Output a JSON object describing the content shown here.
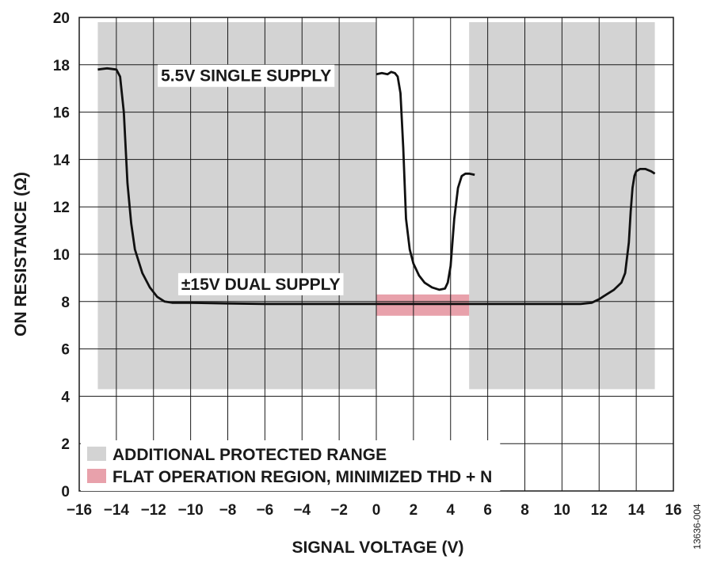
{
  "chart_data": {
    "type": "line",
    "title": "",
    "xlabel": "SIGNAL VOLTAGE (V)",
    "ylabel": "ON RESISTANCE (Ω)",
    "xlim": [
      -16,
      16
    ],
    "ylim": [
      0,
      20
    ],
    "x_ticks": [
      -16,
      -14,
      -12,
      -10,
      -8,
      -6,
      -4,
      -2,
      0,
      2,
      4,
      6,
      8,
      10,
      12,
      14,
      16
    ],
    "x_tick_labels": [
      "−16",
      "−14",
      "−12",
      "−10",
      "−8",
      "−6",
      "−4",
      "−2",
      "0",
      "2",
      "4",
      "6",
      "8",
      "10",
      "12",
      "14",
      "16"
    ],
    "y_ticks": [
      0,
      2,
      4,
      6,
      8,
      10,
      12,
      14,
      16,
      18,
      20
    ],
    "y_tick_labels": [
      "0",
      "2",
      "4",
      "6",
      "8",
      "10",
      "12",
      "14",
      "16",
      "18",
      "20"
    ],
    "grid": true,
    "shaded_regions": [
      {
        "legend_ref": 0,
        "x": [
          -15,
          0
        ],
        "y": [
          4.3,
          19.8
        ],
        "color": "#d3d3d3"
      },
      {
        "legend_ref": 0,
        "x": [
          5,
          15
        ],
        "y": [
          4.3,
          19.8
        ],
        "color": "#d3d3d3"
      },
      {
        "legend_ref": 1,
        "x": [
          0,
          5
        ],
        "y": [
          7.4,
          8.3
        ],
        "color": "#e8a1ab"
      }
    ],
    "legend": {
      "placement": "bottom-left",
      "entries": [
        {
          "label": "ADDITIONAL PROTECTED RANGE",
          "color": "#d3d3d3"
        },
        {
          "label": "FLAT OPERATION REGION, MINIMIZED THD + N",
          "color": "#e8a1ab"
        }
      ]
    },
    "series": [
      {
        "name": "±15V DUAL SUPPLY",
        "label_at": [
          -10.5,
          8.5
        ],
        "x": [
          -15,
          -14.5,
          -14,
          -13.8,
          -13.6,
          -13.4,
          -13.2,
          -13,
          -12.6,
          -12.2,
          -11.8,
          -11.4,
          -11,
          -10,
          -8,
          -6,
          -4,
          -2,
          0,
          2,
          4,
          6,
          8,
          10,
          11,
          11.6,
          12,
          12.4,
          12.8,
          13.2,
          13.4,
          13.6,
          13.7,
          13.8,
          13.9,
          14,
          14.2,
          14.5,
          14.8,
          15
        ],
        "y": [
          17.8,
          17.85,
          17.8,
          17.5,
          16.0,
          13.0,
          11.3,
          10.2,
          9.2,
          8.6,
          8.2,
          8.0,
          7.95,
          7.95,
          7.92,
          7.9,
          7.9,
          7.9,
          7.9,
          7.9,
          7.9,
          7.9,
          7.9,
          7.9,
          7.9,
          7.95,
          8.1,
          8.3,
          8.5,
          8.8,
          9.2,
          10.5,
          11.8,
          12.8,
          13.3,
          13.5,
          13.6,
          13.6,
          13.5,
          13.4
        ]
      },
      {
        "name": "5.5V SINGLE SUPPLY",
        "label_at": [
          -11.6,
          17.3
        ],
        "x": [
          0,
          0.3,
          0.6,
          0.8,
          1,
          1.15,
          1.3,
          1.45,
          1.6,
          1.8,
          2.0,
          2.3,
          2.6,
          3.0,
          3.4,
          3.7,
          3.85,
          4.0,
          4.2,
          4.4,
          4.6,
          4.8,
          5.0,
          5.3
        ],
        "y": [
          17.6,
          17.65,
          17.6,
          17.7,
          17.65,
          17.5,
          16.8,
          14.5,
          11.5,
          10.2,
          9.6,
          9.1,
          8.8,
          8.6,
          8.5,
          8.55,
          8.8,
          9.5,
          11.5,
          12.8,
          13.3,
          13.4,
          13.4,
          13.35
        ]
      }
    ]
  },
  "figure_id": "13636-004"
}
